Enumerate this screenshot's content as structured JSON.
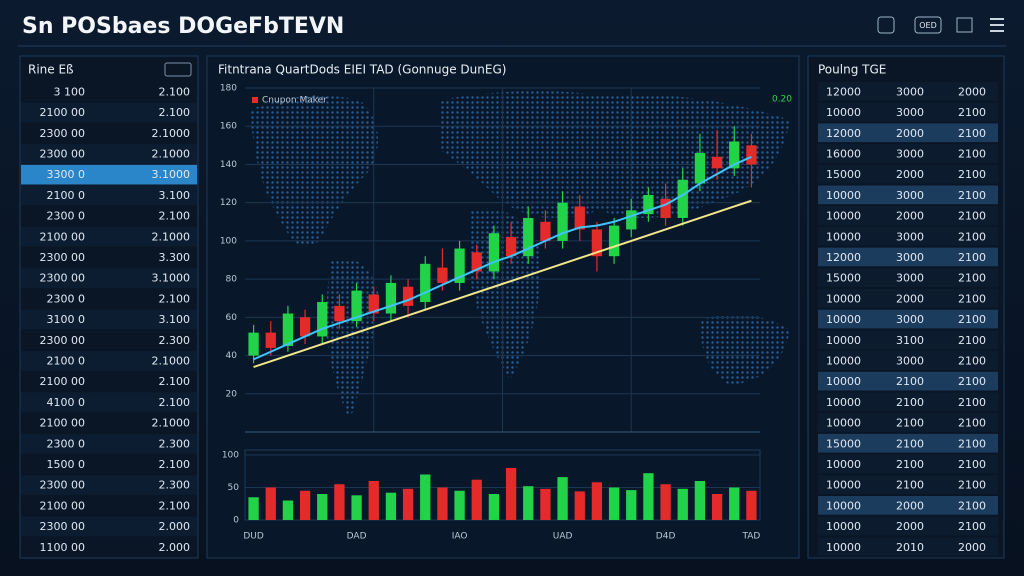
{
  "header": {
    "title": "Sn POSbaes DOGeFbTEVN",
    "badge": "OED"
  },
  "left_table": {
    "title": "Rine Eß",
    "highlight": 4,
    "change_colors": [
      "#e03030",
      "#e03030",
      "#35d04a",
      "#35d04a",
      "#35d04a",
      "#35d04a",
      "#35d04a",
      "#35d04a",
      "#35d04a",
      "#e03030",
      "#e03030",
      "#e03030",
      "#e8d040",
      "#35d04a",
      "#e03030",
      "#e03030",
      "#35d04a",
      "#35d04a",
      "#35d04a",
      "#e03030",
      "#35d04a",
      "#e8d040",
      "#e8d040"
    ],
    "rows": [
      [
        "3 100",
        "2.100"
      ],
      [
        "2100 00",
        "2.100"
      ],
      [
        "2300 00",
        "2.1000"
      ],
      [
        "2300 00",
        "2.1000"
      ],
      [
        "3300 0",
        "3.1000"
      ],
      [
        "2100 0",
        "3.100"
      ],
      [
        "2300 0",
        "2.100"
      ],
      [
        "2100 00",
        "2.1000"
      ],
      [
        "2300 00",
        "3.300"
      ],
      [
        "2300 00",
        "3.1000"
      ],
      [
        "2300 0",
        "2.100"
      ],
      [
        "3100 0",
        "3.100"
      ],
      [
        "2300 00",
        "2.300"
      ],
      [
        "2100 0",
        "2.1000"
      ],
      [
        "2100 00",
        "2.100"
      ],
      [
        "4100 0",
        "2.100"
      ],
      [
        "2100 00",
        "2.1000"
      ],
      [
        "2300 0",
        "2.300"
      ],
      [
        "1500 0",
        "2.100"
      ],
      [
        "2300 00",
        "2.300"
      ],
      [
        "2100 00",
        "2.100"
      ],
      [
        "2300 00",
        "2.000"
      ],
      [
        "1100 00",
        "2.000"
      ]
    ]
  },
  "right_table": {
    "title": "Poulng TGE",
    "mid_colors": [
      "#35d04a",
      "#35d04a",
      "#35d04a",
      "#35d04a",
      "#35d04a",
      "#35d04a",
      "#35d04a",
      "#35d04a",
      "#35d04a",
      "#35d04a",
      "#35d04a",
      "#35d04a",
      "#35d04a",
      "#35d04a",
      "#35d04a",
      "#35d04a",
      "#35d04a",
      "#35d04a",
      "#35d04a",
      "#35d04a",
      "#35d04a",
      "#35d04a",
      "#35d04a"
    ],
    "right_colors": [
      "#e03030",
      "#e03030",
      "#e03030",
      "#e03030",
      "#e03030",
      "#e03030",
      "#e03030",
      "#e03030",
      "#e03030",
      "#e03030",
      "#e03030",
      "#e03030",
      "#e03030",
      "#e03030",
      "#e03030",
      "#e03030",
      "#e03030",
      "#e03030",
      "#e03030",
      "#e03030",
      "#e03030",
      "#e03030",
      "#e8d040"
    ],
    "rows": [
      [
        "12000",
        "3000",
        "2000"
      ],
      [
        "10000",
        "3000",
        "2100"
      ],
      [
        "12000",
        "2000",
        "2100"
      ],
      [
        "16000",
        "3000",
        "2100"
      ],
      [
        "15000",
        "2000",
        "2100"
      ],
      [
        "10000",
        "3000",
        "2100"
      ],
      [
        "10000",
        "2000",
        "2100"
      ],
      [
        "10000",
        "3000",
        "2100"
      ],
      [
        "12000",
        "3000",
        "2100"
      ],
      [
        "15000",
        "3000",
        "2100"
      ],
      [
        "10000",
        "2000",
        "2100"
      ],
      [
        "10000",
        "3000",
        "2100"
      ],
      [
        "10000",
        "3100",
        "2100"
      ],
      [
        "10000",
        "3000",
        "2100"
      ],
      [
        "10000",
        "2100",
        "2100"
      ],
      [
        "10000",
        "2100",
        "2100"
      ],
      [
        "10000",
        "2100",
        "2100"
      ],
      [
        "15000",
        "2100",
        "2100"
      ],
      [
        "10000",
        "2100",
        "2100"
      ],
      [
        "10000",
        "2100",
        "2100"
      ],
      [
        "10000",
        "2000",
        "2100"
      ],
      [
        "10000",
        "2000",
        "2100"
      ],
      [
        "10000",
        "2010",
        "2000"
      ]
    ]
  },
  "chart_data": {
    "type": "candlestick",
    "title": "Fitntrana QuartDods EIEI TAD (Gonnuge DunEG)",
    "legend_label": "Cnupon Maker",
    "corner_label": "0.20",
    "up_color": "#22d34a",
    "down_color": "#e52a2a",
    "ylim": [
      0,
      180
    ],
    "yticks": [
      20,
      40,
      60,
      80,
      100,
      120,
      140,
      160,
      180
    ],
    "categories": [
      "DUD",
      null,
      null,
      null,
      null,
      null,
      "DAD",
      null,
      null,
      null,
      null,
      null,
      "IAO",
      null,
      null,
      null,
      null,
      null,
      "UAD",
      null,
      null,
      null,
      null,
      null,
      "D4D",
      null,
      null,
      null,
      null,
      "TAD"
    ],
    "candles": [
      {
        "open": 40,
        "close": 52,
        "high": 56,
        "low": 36
      },
      {
        "open": 52,
        "close": 44,
        "high": 58,
        "low": 40
      },
      {
        "open": 45,
        "close": 62,
        "high": 66,
        "low": 42
      },
      {
        "open": 60,
        "close": 50,
        "high": 64,
        "low": 46
      },
      {
        "open": 50,
        "close": 68,
        "high": 72,
        "low": 46
      },
      {
        "open": 66,
        "close": 58,
        "high": 72,
        "low": 54
      },
      {
        "open": 58,
        "close": 74,
        "high": 78,
        "low": 55
      },
      {
        "open": 72,
        "close": 62,
        "high": 76,
        "low": 58
      },
      {
        "open": 62,
        "close": 78,
        "high": 82,
        "low": 58
      },
      {
        "open": 76,
        "close": 66,
        "high": 80,
        "low": 60
      },
      {
        "open": 68,
        "close": 88,
        "high": 92,
        "low": 64
      },
      {
        "open": 86,
        "close": 78,
        "high": 96,
        "low": 74
      },
      {
        "open": 78,
        "close": 96,
        "high": 100,
        "low": 74
      },
      {
        "open": 94,
        "close": 84,
        "high": 98,
        "low": 80
      },
      {
        "open": 84,
        "close": 104,
        "high": 108,
        "low": 80
      },
      {
        "open": 102,
        "close": 92,
        "high": 110,
        "low": 88
      },
      {
        "open": 92,
        "close": 112,
        "high": 118,
        "low": 88
      },
      {
        "open": 110,
        "close": 100,
        "high": 116,
        "low": 96
      },
      {
        "open": 100,
        "close": 120,
        "high": 126,
        "low": 96
      },
      {
        "open": 118,
        "close": 106,
        "high": 124,
        "low": 100
      },
      {
        "open": 106,
        "close": 92,
        "high": 110,
        "low": 84
      },
      {
        "open": 92,
        "close": 108,
        "high": 112,
        "low": 88
      },
      {
        "open": 106,
        "close": 116,
        "high": 122,
        "low": 102
      },
      {
        "open": 114,
        "close": 124,
        "high": 128,
        "low": 110
      },
      {
        "open": 122,
        "close": 112,
        "high": 130,
        "low": 108
      },
      {
        "open": 112,
        "close": 132,
        "high": 138,
        "low": 108
      },
      {
        "open": 130,
        "close": 146,
        "high": 156,
        "low": 126
      },
      {
        "open": 144,
        "close": 138,
        "high": 158,
        "low": 132
      },
      {
        "open": 138,
        "close": 152,
        "high": 160,
        "low": 134
      },
      {
        "open": 150,
        "close": 140,
        "high": 156,
        "low": 128
      }
    ],
    "series": [
      {
        "color": "#3fc4ff",
        "values": [
          38,
          42,
          46,
          50,
          54,
          57,
          60,
          63,
          66,
          69,
          73,
          77,
          81,
          85,
          89,
          92,
          96,
          100,
          104,
          107,
          108,
          110,
          113,
          116,
          119,
          124,
          130,
          135,
          140,
          144
        ]
      },
      {
        "color": "#f2e68a",
        "values": [
          34,
          37,
          40,
          43,
          46,
          49,
          52,
          55,
          58,
          61,
          64,
          67,
          70,
          73,
          76,
          79,
          82,
          85,
          88,
          91,
          94,
          97,
          100,
          103,
          106,
          109,
          112,
          115,
          118,
          121
        ]
      }
    ],
    "volume": {
      "ylim": [
        0,
        100
      ],
      "yticks": [
        0,
        50,
        100
      ],
      "values": [
        35,
        50,
        30,
        45,
        40,
        55,
        38,
        60,
        42,
        48,
        70,
        50,
        45,
        62,
        40,
        80,
        52,
        48,
        66,
        44,
        58,
        50,
        46,
        72,
        55,
        48,
        60,
        40,
        50,
        45
      ]
    }
  }
}
